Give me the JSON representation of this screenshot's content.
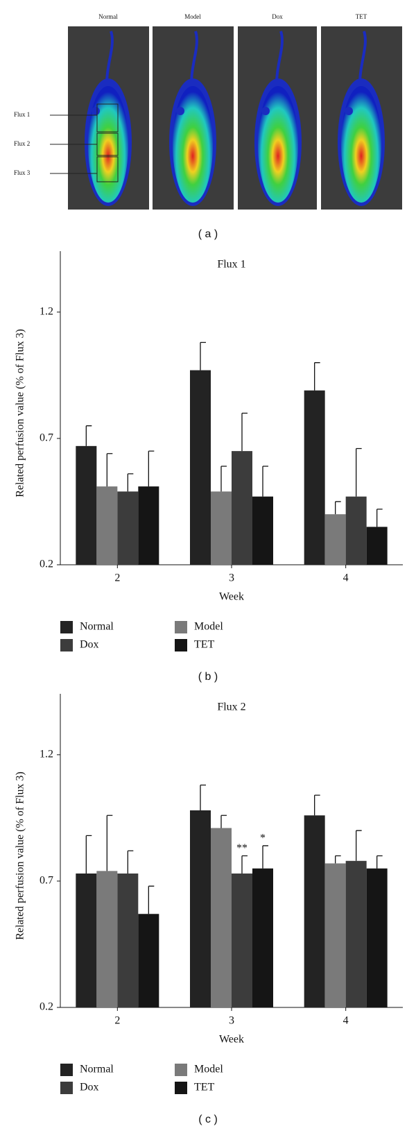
{
  "panel_a": {
    "groups": [
      "Normal",
      "Model",
      "Dox",
      "TET"
    ],
    "regions": [
      "Flux 1",
      "Flux 2",
      "Flux 3"
    ],
    "caption": "( a )"
  },
  "chart_data": [
    {
      "type": "bar",
      "title": "Flux 1",
      "caption": "( b )",
      "x_label": "Week",
      "y_label": "Related perfusion value (% of Flux 3)",
      "categories": [
        "2",
        "3",
        "4"
      ],
      "ylim": [
        0.2,
        1.4
      ],
      "yticks": [
        0.2,
        0.7,
        1.2
      ],
      "series": [
        {
          "name": "Normal",
          "color": "#232323",
          "values": [
            0.67,
            0.97,
            0.89
          ],
          "errors": [
            0.08,
            0.11,
            0.11
          ]
        },
        {
          "name": "Model",
          "color": "#7a7a7a",
          "values": [
            0.51,
            0.49,
            0.4
          ],
          "errors": [
            0.13,
            0.1,
            0.05
          ]
        },
        {
          "name": "Dox",
          "color": "#3c3c3c",
          "values": [
            0.49,
            0.65,
            0.47
          ],
          "errors": [
            0.07,
            0.15,
            0.19
          ]
        },
        {
          "name": "TET",
          "color": "#151515",
          "values": [
            0.51,
            0.47,
            0.35
          ],
          "errors": [
            0.14,
            0.12,
            0.07
          ]
        }
      ]
    },
    {
      "type": "bar",
      "title": "Flux 2",
      "caption": "( c )",
      "x_label": "Week",
      "y_label": "Related perfusion value (% of Flux 3)",
      "categories": [
        "2",
        "3",
        "4"
      ],
      "ylim": [
        0.2,
        1.4
      ],
      "yticks": [
        0.2,
        0.7,
        1.2
      ],
      "series": [
        {
          "name": "Normal",
          "color": "#232323",
          "values": [
            0.73,
            0.98,
            0.96
          ],
          "errors": [
            0.15,
            0.1,
            0.08
          ]
        },
        {
          "name": "Model",
          "color": "#7a7a7a",
          "values": [
            0.74,
            0.91,
            0.77
          ],
          "errors": [
            0.22,
            0.05,
            0.03
          ]
        },
        {
          "name": "Dox",
          "color": "#3c3c3c",
          "values": [
            0.73,
            0.73,
            0.78
          ],
          "errors": [
            0.09,
            0.07,
            0.12
          ],
          "significance": [
            null,
            "**",
            null
          ]
        },
        {
          "name": "TET",
          "color": "#151515",
          "values": [
            0.57,
            0.75,
            0.75
          ],
          "errors": [
            0.11,
            0.09,
            0.05
          ],
          "significance": [
            null,
            "*",
            null
          ]
        }
      ]
    }
  ]
}
